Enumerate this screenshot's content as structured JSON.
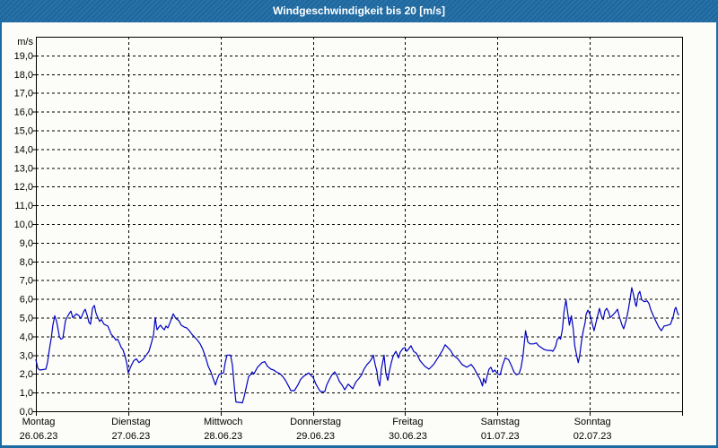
{
  "window": {
    "title": "Windgeschwindigkeit bis 20 [m/s]"
  },
  "colors": {
    "titlebar_bg": "#1e6ba4",
    "title_text": "#ffffff",
    "background": "#fcfdf8",
    "grid": "#000000",
    "axis": "#000000",
    "text": "#000000",
    "line": "#0000c0"
  },
  "chart_data": {
    "type": "line",
    "title": "Windgeschwindigkeit bis 20 [m/s]",
    "ylabel": "m/s",
    "xlabel": "",
    "ylim": [
      0,
      20
    ],
    "ytick_step": 1,
    "ytick_labels": [
      "0,0",
      "1,0",
      "2,0",
      "3,0",
      "4,0",
      "5,0",
      "6,0",
      "7,0",
      "8,0",
      "9,0",
      "10,0",
      "11,0",
      "12,0",
      "13,0",
      "14,0",
      "15,0",
      "16,0",
      "17,0",
      "18,0",
      "19,0"
    ],
    "unit_label": "m/s",
    "grid": "dashed",
    "legend": "none",
    "x_unit": "hours",
    "xlim": [
      0,
      168
    ],
    "categories": [
      {
        "day": "Montag",
        "date": "26.06.23"
      },
      {
        "day": "Dienstag",
        "date": "27.06.23"
      },
      {
        "day": "Mittwoch",
        "date": "28.06.23"
      },
      {
        "day": "Donnerstag",
        "date": "29.06.23"
      },
      {
        "day": "Freitag",
        "date": "30.06.23"
      },
      {
        "day": "Samstag",
        "date": "01.07.23"
      },
      {
        "day": "Sonntag",
        "date": "02.07.23"
      }
    ],
    "series": [
      {
        "name": "Windgeschwindigkeit",
        "color": "#0000c0",
        "points": [
          [
            0,
            2.75
          ],
          [
            0.5,
            2.3
          ],
          [
            1,
            2.2
          ],
          [
            2.6,
            2.25
          ],
          [
            3,
            2.6
          ],
          [
            3.5,
            3.3
          ],
          [
            4,
            3.9
          ],
          [
            4.4,
            4.6
          ],
          [
            4.9,
            5.1
          ],
          [
            5.4,
            4.8
          ],
          [
            6.1,
            4.0
          ],
          [
            6.5,
            3.85
          ],
          [
            7,
            3.9
          ],
          [
            7.7,
            4.85
          ],
          [
            8.2,
            5.05
          ],
          [
            8.6,
            5.2
          ],
          [
            9.1,
            5.35
          ],
          [
            9.6,
            5.0
          ],
          [
            10.5,
            5.2
          ],
          [
            11.2,
            5.1
          ],
          [
            11.7,
            4.95
          ],
          [
            12.4,
            5.3
          ],
          [
            12.8,
            5.45
          ],
          [
            13.3,
            5.15
          ],
          [
            13.8,
            4.75
          ],
          [
            14.2,
            4.65
          ],
          [
            14.7,
            5.5
          ],
          [
            15.2,
            5.65
          ],
          [
            15.6,
            5.25
          ],
          [
            16.1,
            5.0
          ],
          [
            16.6,
            4.8
          ],
          [
            17,
            4.9
          ],
          [
            17.7,
            4.65
          ],
          [
            18.7,
            4.55
          ],
          [
            19.1,
            4.35
          ],
          [
            19.6,
            4.1
          ],
          [
            20.3,
            3.95
          ],
          [
            20.8,
            3.8
          ],
          [
            21.2,
            3.85
          ],
          [
            21.7,
            3.65
          ],
          [
            22.2,
            3.4
          ],
          [
            22.6,
            3.3
          ],
          [
            23.1,
            3.0
          ],
          [
            23.6,
            2.6
          ],
          [
            24,
            2.05
          ],
          [
            24.7,
            2.4
          ],
          [
            25.4,
            2.7
          ],
          [
            26.1,
            2.8
          ],
          [
            26.8,
            2.6
          ],
          [
            27.8,
            2.75
          ],
          [
            28.7,
            3.0
          ],
          [
            29.4,
            3.2
          ],
          [
            30.1,
            3.7
          ],
          [
            30.6,
            4.1
          ],
          [
            31,
            5.0
          ],
          [
            31.5,
            4.35
          ],
          [
            32,
            4.5
          ],
          [
            32.4,
            4.6
          ],
          [
            32.9,
            4.45
          ],
          [
            33.4,
            4.35
          ],
          [
            33.8,
            4.55
          ],
          [
            34.3,
            4.45
          ],
          [
            35,
            4.8
          ],
          [
            35.7,
            5.2
          ],
          [
            36.4,
            4.95
          ],
          [
            37.1,
            4.85
          ],
          [
            37.8,
            4.6
          ],
          [
            38.5,
            4.5
          ],
          [
            39.2,
            4.45
          ],
          [
            39.9,
            4.3
          ],
          [
            40.6,
            4.1
          ],
          [
            41.3,
            3.95
          ],
          [
            42,
            3.8
          ],
          [
            42.7,
            3.6
          ],
          [
            43.4,
            3.3
          ],
          [
            44.1,
            2.9
          ],
          [
            44.8,
            2.4
          ],
          [
            45.5,
            2.1
          ],
          [
            46,
            1.8
          ],
          [
            46.7,
            1.4
          ],
          [
            47.1,
            1.7
          ],
          [
            47.6,
            1.95
          ],
          [
            48,
            2.0
          ],
          [
            48.8,
            2.05
          ],
          [
            49.2,
            2.6
          ],
          [
            49.7,
            3.0
          ],
          [
            50.6,
            3.0
          ],
          [
            51.1,
            2.45
          ],
          [
            51.6,
            1.3
          ],
          [
            52,
            0.5
          ],
          [
            53.7,
            0.45
          ],
          [
            54.1,
            0.75
          ],
          [
            54.6,
            1.2
          ],
          [
            55.3,
            1.85
          ],
          [
            55.8,
            1.95
          ],
          [
            56.2,
            2.1
          ],
          [
            56.7,
            2.0
          ],
          [
            57.6,
            2.35
          ],
          [
            58.3,
            2.5
          ],
          [
            58.8,
            2.6
          ],
          [
            59.5,
            2.65
          ],
          [
            60.2,
            2.4
          ],
          [
            61.1,
            2.25
          ],
          [
            61.8,
            2.2
          ],
          [
            62.5,
            2.1
          ],
          [
            63.5,
            2.0
          ],
          [
            64.2,
            1.85
          ],
          [
            64.9,
            1.65
          ],
          [
            65.8,
            1.3
          ],
          [
            66.3,
            1.1
          ],
          [
            67.2,
            1.1
          ],
          [
            68.1,
            1.4
          ],
          [
            68.8,
            1.7
          ],
          [
            69.5,
            1.85
          ],
          [
            70.2,
            1.95
          ],
          [
            70.9,
            2.05
          ],
          [
            71.6,
            1.9
          ],
          [
            72.1,
            1.8
          ],
          [
            72.8,
            1.45
          ],
          [
            73.5,
            1.2
          ],
          [
            74,
            1.05
          ],
          [
            75.1,
            1.05
          ],
          [
            75.6,
            1.4
          ],
          [
            76.3,
            1.7
          ],
          [
            77,
            1.95
          ],
          [
            77.7,
            2.1
          ],
          [
            78.4,
            1.85
          ],
          [
            78.9,
            1.6
          ],
          [
            79.6,
            1.4
          ],
          [
            80.3,
            1.15
          ],
          [
            81.2,
            1.45
          ],
          [
            81.9,
            1.3
          ],
          [
            82.4,
            1.2
          ],
          [
            82.8,
            1.4
          ],
          [
            83.3,
            1.6
          ],
          [
            84,
            1.75
          ],
          [
            84.7,
            1.95
          ],
          [
            85.2,
            2.2
          ],
          [
            85.6,
            2.35
          ],
          [
            86.1,
            2.5
          ],
          [
            86.8,
            2.65
          ],
          [
            87.3,
            2.8
          ],
          [
            87.7,
            3.0
          ],
          [
            88.2,
            2.5
          ],
          [
            88.7,
            2.1
          ],
          [
            88.9,
            1.7
          ],
          [
            89.4,
            1.35
          ],
          [
            89.8,
            2.25
          ],
          [
            90.5,
            3.0
          ],
          [
            91,
            2.0
          ],
          [
            91.5,
            1.65
          ],
          [
            91.9,
            2.15
          ],
          [
            92.4,
            2.6
          ],
          [
            92.9,
            2.95
          ],
          [
            93.6,
            3.2
          ],
          [
            94.3,
            2.85
          ],
          [
            94.7,
            3.15
          ],
          [
            95.4,
            3.35
          ],
          [
            95.9,
            3.4
          ],
          [
            96.4,
            3.2
          ],
          [
            96.8,
            3.3
          ],
          [
            97.5,
            3.5
          ],
          [
            98.2,
            3.2
          ],
          [
            98.9,
            3.1
          ],
          [
            99.9,
            2.7
          ],
          [
            101.1,
            2.4
          ],
          [
            102.2,
            2.25
          ],
          [
            103.4,
            2.5
          ],
          [
            104.5,
            2.85
          ],
          [
            105.7,
            3.25
          ],
          [
            106.4,
            3.55
          ],
          [
            107.8,
            3.25
          ],
          [
            108.5,
            3.0
          ],
          [
            109.7,
            2.8
          ],
          [
            110.8,
            2.5
          ],
          [
            112,
            2.35
          ],
          [
            113.2,
            2.5
          ],
          [
            113.9,
            2.3
          ],
          [
            114.8,
            1.95
          ],
          [
            115.5,
            1.7
          ],
          [
            116.1,
            1.35
          ],
          [
            116.4,
            1.75
          ],
          [
            116.9,
            1.5
          ],
          [
            117.4,
            1.95
          ],
          [
            117.8,
            2.25
          ],
          [
            118.3,
            2.35
          ],
          [
            118.8,
            2.1
          ],
          [
            119.3,
            2.2
          ],
          [
            120,
            2.0
          ],
          [
            120.7,
            1.95
          ],
          [
            121.3,
            2.45
          ],
          [
            122,
            2.85
          ],
          [
            122.9,
            2.75
          ],
          [
            123.6,
            2.45
          ],
          [
            124.3,
            2.1
          ],
          [
            124.9,
            1.95
          ],
          [
            125.6,
            2.0
          ],
          [
            126.1,
            2.3
          ],
          [
            126.6,
            2.9
          ],
          [
            127,
            3.7
          ],
          [
            127.3,
            4.3
          ],
          [
            127.9,
            3.7
          ],
          [
            128.5,
            3.6
          ],
          [
            129.4,
            3.6
          ],
          [
            130.1,
            3.65
          ],
          [
            130.7,
            3.5
          ],
          [
            131.4,
            3.4
          ],
          [
            132.1,
            3.3
          ],
          [
            133,
            3.25
          ],
          [
            133.9,
            3.25
          ],
          [
            134.4,
            3.2
          ],
          [
            135.1,
            3.45
          ],
          [
            135.5,
            3.8
          ],
          [
            136,
            3.95
          ],
          [
            136.4,
            3.85
          ],
          [
            136.9,
            4.4
          ],
          [
            137.3,
            5.3
          ],
          [
            137.8,
            5.95
          ],
          [
            138.3,
            5.2
          ],
          [
            138.7,
            4.6
          ],
          [
            139.2,
            5.1
          ],
          [
            139.7,
            4.4
          ],
          [
            140.1,
            3.5
          ],
          [
            140.6,
            2.95
          ],
          [
            141,
            2.6
          ],
          [
            141.4,
            3.0
          ],
          [
            141.9,
            3.8
          ],
          [
            142.3,
            4.3
          ],
          [
            142.8,
            4.75
          ],
          [
            143,
            5.15
          ],
          [
            143.5,
            5.4
          ],
          [
            144,
            5.2
          ],
          [
            144.4,
            4.85
          ],
          [
            145.1,
            4.3
          ],
          [
            145.8,
            4.9
          ],
          [
            146.5,
            5.5
          ],
          [
            147,
            5.1
          ],
          [
            147.5,
            4.9
          ],
          [
            147.9,
            5.35
          ],
          [
            148.4,
            5.5
          ],
          [
            148.9,
            5.3
          ],
          [
            149.3,
            5.0
          ],
          [
            150,
            5.15
          ],
          [
            150.7,
            5.3
          ],
          [
            151.2,
            5.45
          ],
          [
            151.7,
            5.05
          ],
          [
            152.4,
            4.6
          ],
          [
            152.8,
            4.4
          ],
          [
            153.5,
            4.9
          ],
          [
            154,
            5.4
          ],
          [
            154.5,
            6.0
          ],
          [
            154.9,
            6.6
          ],
          [
            155.4,
            6.2
          ],
          [
            155.9,
            5.7
          ],
          [
            156.1,
            5.6
          ],
          [
            156.6,
            6.25
          ],
          [
            157,
            6.4
          ],
          [
            157.5,
            5.95
          ],
          [
            158.2,
            5.85
          ],
          [
            158.9,
            5.9
          ],
          [
            159.4,
            5.75
          ],
          [
            159.8,
            5.45
          ],
          [
            160.5,
            5.1
          ],
          [
            161.2,
            4.8
          ],
          [
            161.9,
            4.5
          ],
          [
            162.6,
            4.3
          ],
          [
            163.3,
            4.55
          ],
          [
            164.3,
            4.6
          ],
          [
            165,
            4.65
          ],
          [
            165.7,
            5.05
          ],
          [
            166.1,
            5.45
          ],
          [
            166.4,
            5.55
          ],
          [
            166.8,
            5.25
          ],
          [
            167.1,
            5.15
          ]
        ]
      }
    ]
  }
}
